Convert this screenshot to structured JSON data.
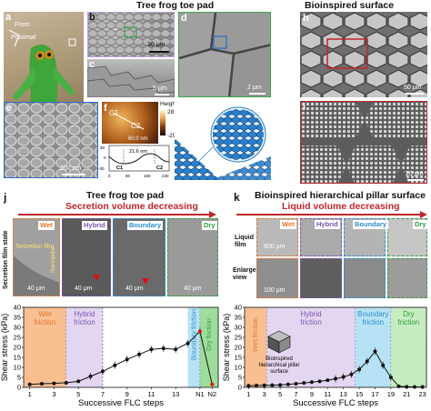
{
  "top": {
    "titles": {
      "toe_pad": "Tree frog toe pad",
      "bioinspired": "Bioinspired surface"
    },
    "panel_a": {
      "label": "a",
      "front": "Front",
      "proximal": "Proximal"
    },
    "panel_b": {
      "label": "b",
      "scale": "30 μm"
    },
    "panel_c": {
      "label": "c",
      "scale": "5 μm"
    },
    "panel_d": {
      "label": "d",
      "scale": "2 μm"
    },
    "panel_e": {
      "label": "e",
      "scale": "200 nm"
    },
    "panel_f": {
      "label": "f",
      "c1": "C1",
      "c2": "C2",
      "scale": "60.0 nm",
      "height_label": "Height",
      "height_max": "28.4 nm",
      "height_min": "-29.6 nm",
      "profile": {
        "ylabel": "Height (nm)",
        "yticks": [
          "30",
          "0",
          "-30"
        ],
        "xticks": [
          "0",
          "80",
          "160",
          "240"
        ],
        "annot": "21.6 nm",
        "c1": "C1",
        "c2": "C2"
      }
    },
    "panel_g": {
      "label": "g"
    },
    "panel_h": {
      "label": "h",
      "scale": "50 μm"
    },
    "panel_i": {
      "label": "i",
      "scale": "20 μm"
    }
  },
  "panel_j": {
    "label": "j",
    "title": "Tree frog toe pad",
    "subtitle": "Secretion volume decreasing",
    "side_label": "Secretion film state",
    "stages": [
      "Wet",
      "Hybrid",
      "Boundary",
      "Dry"
    ],
    "img_text": {
      "secretion_film": "Secretion film",
      "nanopillar": "Nanopillar",
      "scale": "40 μm"
    },
    "chart": {
      "ylabel": "Shear stress (kPa)",
      "xlabel": "Successive FLC steps",
      "yticks": [
        "0",
        "5",
        "10",
        "15",
        "20",
        "25",
        "30",
        "35",
        "40"
      ],
      "xticks": [
        "1",
        "3",
        "5",
        "7",
        "9",
        "11",
        "13",
        "N1",
        "N2"
      ],
      "regions": {
        "wet": "Wet friction",
        "hybrid": "Hybrid friction",
        "boundary": "Boundary friction",
        "dry": "Dry friction"
      }
    }
  },
  "panel_k": {
    "label": "k",
    "title": "Bioinspired hierarchical pillar surface",
    "subtitle": "Liquid volume decreasing",
    "stages": [
      "Wet",
      "Hybrid",
      "Boundary",
      "Dry"
    ],
    "row_labels": {
      "film": "Liquid film",
      "enlarged": "Enlarged view"
    },
    "img_text": {
      "scale1": "600 μm",
      "scale2": "100 μm"
    },
    "chart": {
      "ylabel": "Shear stress (kPa)",
      "xlabel": "Successive FLC steps",
      "yticks": [
        "0",
        "5",
        "10",
        "15",
        "20",
        "25",
        "30",
        "35",
        "40"
      ],
      "xticks": [
        "1",
        "3",
        "5",
        "7",
        "9",
        "11",
        "13",
        "15",
        "17",
        "19",
        "21",
        "23"
      ],
      "regions": {
        "wet": "Wet friction",
        "hybrid": "Hybrid friction",
        "boundary": "Boundary friction",
        "dry": "Dry friction"
      },
      "inset": "Bioinspired hierarchical pillar surface"
    }
  },
  "chart_data": [
    {
      "type": "line",
      "title": "Tree frog toe pad",
      "xlabel": "Successive FLC steps",
      "ylabel": "Shear stress (kPa)",
      "ylim": [
        0,
        40
      ],
      "x": [
        "1",
        "2",
        "3",
        "4",
        "5",
        "6",
        "7",
        "8",
        "9",
        "10",
        "11",
        "12",
        "13",
        "14",
        "N1",
        "N2"
      ],
      "values": [
        1.5,
        1.8,
        2.0,
        2.3,
        3.0,
        5.5,
        8.0,
        11.0,
        14.0,
        16.5,
        19.0,
        19.5,
        19.0,
        22.0,
        28.0,
        1.5
      ],
      "regions": [
        {
          "name": "Wet friction",
          "from": "1",
          "to": "4",
          "color": "#f6a96b"
        },
        {
          "name": "Hybrid friction",
          "from": "4",
          "to": "7",
          "color": "#d9c8ec"
        },
        {
          "name": "Boundary friction",
          "from": "14",
          "to": "N1",
          "color": "#9fd8f2"
        },
        {
          "name": "Dry friction",
          "from": "N1",
          "to": "N2",
          "color": "#7ed07a"
        }
      ]
    },
    {
      "type": "line",
      "title": "Bioinspired hierarchical pillar surface",
      "xlabel": "Successive FLC steps",
      "ylabel": "Shear stress (kPa)",
      "ylim": [
        0,
        40
      ],
      "x": [
        1,
        2,
        3,
        4,
        5,
        6,
        7,
        8,
        9,
        10,
        11,
        12,
        13,
        14,
        15,
        16,
        17,
        18,
        19,
        20,
        21,
        22,
        23
      ],
      "values": [
        0.8,
        0.9,
        1.0,
        1.1,
        1.2,
        1.5,
        1.8,
        2.2,
        2.6,
        3.0,
        3.6,
        4.3,
        5.2,
        6.5,
        9.0,
        13.0,
        18.0,
        11.0,
        5.0,
        0.5,
        0.3,
        0.2,
        0.2
      ],
      "regions": [
        {
          "name": "Wet friction",
          "from": 1,
          "to": 3.3,
          "color": "#f6a96b"
        },
        {
          "name": "Hybrid friction",
          "from": 3.3,
          "to": 14.5,
          "color": "#d9c8ec"
        },
        {
          "name": "Boundary friction",
          "from": 14.5,
          "to": 19,
          "color": "#9fd8f2"
        },
        {
          "name": "Dry friction",
          "from": 19,
          "to": 23.5,
          "color": "#b3e6ad"
        }
      ]
    }
  ],
  "colors": {
    "red": "#c0262b",
    "wet": "#f6a96b",
    "hybrid": "#d9c8ec",
    "boundary": "#9fd8f2",
    "dry": "#7ed07a",
    "purple": "#7a55b0",
    "blue": "#2d8fcf",
    "green": "#2f9e3b",
    "orange": "#e4742b"
  }
}
